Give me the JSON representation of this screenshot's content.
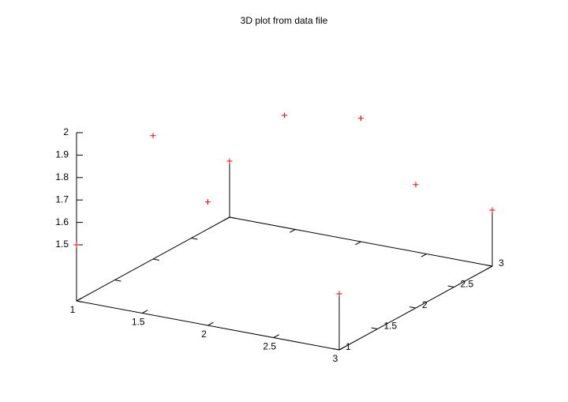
{
  "chart_data": {
    "type": "scatter3d",
    "title": "3D plot from data file",
    "x": [
      1,
      1,
      1,
      2,
      2,
      2,
      3,
      3,
      3
    ],
    "y": [
      1,
      2,
      3,
      1,
      2,
      3,
      1,
      2,
      3
    ],
    "z": [
      1.5,
      1.8,
      1.5,
      1.8,
      2,
      1.8,
      1.5,
      1.8,
      1.5
    ],
    "color": "#ff0000",
    "xlim": [
      1,
      3
    ],
    "ylim": [
      1,
      3
    ],
    "zlim": [
      1.25,
      2
    ],
    "xticks": [
      1,
      1.5,
      2,
      2.5,
      3
    ],
    "yticks": [
      1,
      1.5,
      2,
      2.5,
      3
    ],
    "zticks": [
      1.5,
      1.6,
      1.7,
      1.8,
      1.9,
      2
    ]
  }
}
